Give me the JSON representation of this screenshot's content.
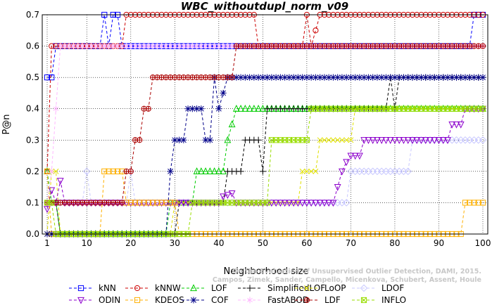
{
  "chart_data": {
    "type": "line",
    "title": "WBC_withoutdupl_norm_v09",
    "xlabel": "Neighborhood size",
    "ylabel": "P@n",
    "xlim": [
      1,
      100
    ],
    "ylim": [
      0,
      0.7
    ],
    "xticks": [
      "1",
      "10",
      "20",
      "30",
      "40",
      "50",
      "60",
      "70",
      "80",
      "90",
      "100"
    ],
    "yticks": [
      "0.0",
      "0.1",
      "0.2",
      "0.3",
      "0.4",
      "0.5",
      "0.6",
      "0.7"
    ],
    "grid": true,
    "legend_position": "bottom",
    "watermark": [
      "Campos, Zimek, Sander, Campello, Micenkova, Schubert, Assent, Houle",
      "On the Evaluation of Unsupervised Outlier Detection, DAMI, 2015."
    ],
    "series": [
      {
        "name": "kNN",
        "color": "#0000ff",
        "marker": "square",
        "points": [
          [
            1,
            0.5
          ],
          [
            2,
            0.5
          ],
          [
            3,
            0.6
          ],
          [
            13,
            0.6
          ],
          [
            14,
            0.7
          ],
          [
            15,
            0.6
          ],
          [
            16,
            0.7
          ],
          [
            17,
            0.7
          ],
          [
            18,
            0.6
          ],
          [
            97,
            0.6
          ],
          [
            98,
            0.7
          ],
          [
            100,
            0.7
          ]
        ]
      },
      {
        "name": "kNNW",
        "color": "#cc0000",
        "marker": "circle",
        "points": [
          [
            1,
            0.2
          ],
          [
            2,
            0.6
          ],
          [
            16,
            0.6
          ],
          [
            17,
            0.6
          ],
          [
            18,
            0.6
          ],
          [
            19,
            0.7
          ],
          [
            48,
            0.7
          ],
          [
            49,
            0.6
          ],
          [
            59,
            0.6
          ],
          [
            60,
            0.7
          ],
          [
            61,
            0.6
          ],
          [
            63,
            0.7
          ],
          [
            100,
            0.7
          ]
        ]
      },
      {
        "name": "LOF",
        "color": "#00cc00",
        "marker": "triangle-up",
        "points": [
          [
            1,
            0.2
          ],
          [
            2,
            0.1
          ],
          [
            3,
            0.1
          ],
          [
            4,
            0.0
          ],
          [
            28,
            0.0
          ],
          [
            29,
            0.1
          ],
          [
            34,
            0.1
          ],
          [
            35,
            0.2
          ],
          [
            41,
            0.2
          ],
          [
            42,
            0.3
          ],
          [
            44,
            0.4
          ],
          [
            72,
            0.4
          ],
          [
            74,
            0.4
          ],
          [
            100,
            0.4
          ]
        ]
      },
      {
        "name": "SimplifiedLOF",
        "color": "#000000",
        "marker": "plus",
        "points": [
          [
            1,
            0.1
          ],
          [
            3,
            0.1
          ],
          [
            4,
            0.0
          ],
          [
            30,
            0.0
          ],
          [
            31,
            0.1
          ],
          [
            32,
            0.1
          ],
          [
            41,
            0.1
          ],
          [
            42,
            0.2
          ],
          [
            45,
            0.2
          ],
          [
            46,
            0.3
          ],
          [
            49,
            0.3
          ],
          [
            50,
            0.2
          ],
          [
            51,
            0.4
          ],
          [
            78,
            0.4
          ],
          [
            79,
            0.5
          ],
          [
            80,
            0.4
          ],
          [
            81,
            0.5
          ],
          [
            100,
            0.5
          ]
        ]
      },
      {
        "name": "LoOP",
        "color": "#e0e000",
        "marker": "x",
        "points": [
          [
            1,
            0.0
          ],
          [
            2,
            0.2
          ],
          [
            3,
            0.2
          ],
          [
            4,
            0.0
          ],
          [
            29,
            0.0
          ],
          [
            30,
            0.1
          ],
          [
            58,
            0.1
          ],
          [
            59,
            0.2
          ],
          [
            62,
            0.2
          ],
          [
            63,
            0.3
          ],
          [
            70,
            0.3
          ],
          [
            71,
            0.4
          ],
          [
            100,
            0.4
          ]
        ]
      },
      {
        "name": "LDOF",
        "color": "#c8c8ff",
        "marker": "diamond",
        "points": [
          [
            1,
            0.1
          ],
          [
            9,
            0.1
          ],
          [
            10,
            0.2
          ],
          [
            11,
            0.1
          ],
          [
            19,
            0.1
          ],
          [
            20,
            0.2
          ],
          [
            21,
            0.1
          ],
          [
            68,
            0.1
          ],
          [
            69,
            0.1
          ],
          [
            70,
            0.2
          ],
          [
            75,
            0.2
          ],
          [
            76,
            0.2
          ],
          [
            82,
            0.2
          ],
          [
            83,
            0.2
          ],
          [
            84,
            0.3
          ],
          [
            100,
            0.3
          ]
        ]
      },
      {
        "name": "ODIN",
        "color": "#8c00cc",
        "marker": "triangle-down",
        "points": [
          [
            1,
            0.08
          ],
          [
            2,
            0.14
          ],
          [
            3,
            0.1
          ],
          [
            4,
            0.17
          ],
          [
            5,
            0.1
          ],
          [
            40,
            0.1
          ],
          [
            41,
            0.12
          ],
          [
            43,
            0.13
          ],
          [
            44,
            0.1
          ],
          [
            66,
            0.1
          ],
          [
            67,
            0.15
          ],
          [
            68,
            0.2
          ],
          [
            69,
            0.23
          ],
          [
            70,
            0.25
          ],
          [
            72,
            0.25
          ],
          [
            73,
            0.3
          ],
          [
            92,
            0.3
          ],
          [
            93,
            0.35
          ],
          [
            95,
            0.35
          ],
          [
            96,
            0.4
          ],
          [
            100,
            0.4
          ]
        ]
      },
      {
        "name": "KDEOS",
        "color": "#ffb000",
        "marker": "square",
        "points": [
          [
            1,
            0.2
          ],
          [
            2,
            0.0
          ],
          [
            3,
            0.0
          ],
          [
            4,
            0.0
          ],
          [
            13,
            0.0
          ],
          [
            14,
            0.2
          ],
          [
            18,
            0.2
          ],
          [
            19,
            0.1
          ],
          [
            30,
            0.1
          ],
          [
            31,
            0.0
          ],
          [
            95,
            0.0
          ],
          [
            96,
            0.1
          ],
          [
            100,
            0.1
          ]
        ]
      },
      {
        "name": "COF",
        "color": "#000088",
        "marker": "asterisk",
        "points": [
          [
            1,
            0.0
          ],
          [
            28,
            0.0
          ],
          [
            29,
            0.2
          ],
          [
            30,
            0.3
          ],
          [
            32,
            0.3
          ],
          [
            33,
            0.4
          ],
          [
            36,
            0.4
          ],
          [
            37,
            0.3
          ],
          [
            38,
            0.3
          ],
          [
            39,
            0.5
          ],
          [
            40,
            0.4
          ],
          [
            42,
            0.5
          ],
          [
            100,
            0.5
          ]
        ]
      },
      {
        "name": "FastABOD",
        "color": "#ffb8ff",
        "marker": "star",
        "points": [
          [
            1,
            0.1
          ],
          [
            2,
            0.2
          ],
          [
            3,
            0.4
          ],
          [
            4,
            0.6
          ],
          [
            5,
            0.6
          ],
          [
            6,
            0.6
          ],
          [
            100,
            0.6
          ]
        ]
      },
      {
        "name": "LDF",
        "color": "#aa0000",
        "marker": "circle-plus",
        "points": [
          [
            1,
            0.1
          ],
          [
            18,
            0.1
          ],
          [
            19,
            0.2
          ],
          [
            20,
            0.2
          ],
          [
            21,
            0.3
          ],
          [
            22,
            0.3
          ],
          [
            23,
            0.4
          ],
          [
            24,
            0.4
          ],
          [
            25,
            0.5
          ],
          [
            30,
            0.5
          ],
          [
            31,
            0.5
          ],
          [
            43,
            0.5
          ],
          [
            44,
            0.6
          ],
          [
            100,
            0.6
          ]
        ]
      },
      {
        "name": "INFLO",
        "color": "#99dd00",
        "marker": "square-x",
        "points": [
          [
            1,
            0.1
          ],
          [
            2,
            0.1
          ],
          [
            3,
            0.0
          ],
          [
            4,
            0.0
          ],
          [
            33,
            0.0
          ],
          [
            34,
            0.1
          ],
          [
            42,
            0.1
          ],
          [
            43,
            0.1
          ],
          [
            51,
            0.1
          ],
          [
            52,
            0.3
          ],
          [
            60,
            0.3
          ],
          [
            61,
            0.4
          ],
          [
            100,
            0.4
          ]
        ]
      }
    ]
  }
}
